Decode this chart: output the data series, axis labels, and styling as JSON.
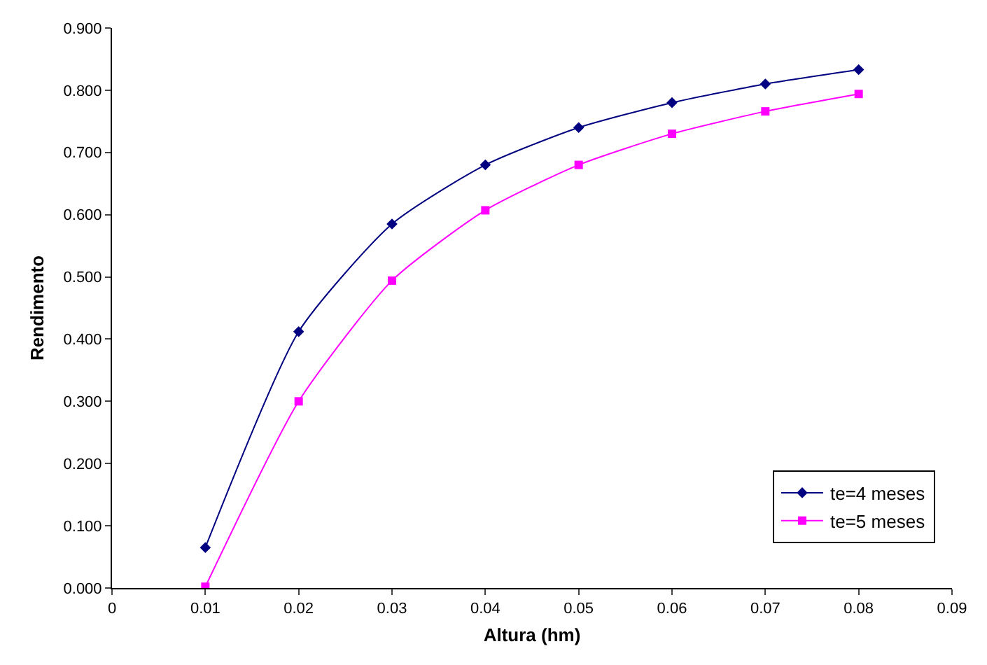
{
  "chart_data": {
    "type": "line",
    "xlabel": "Altura (hm)",
    "ylabel": "Rendimento",
    "x": [
      0.01,
      0.02,
      0.03,
      0.04,
      0.05,
      0.06,
      0.07,
      0.08
    ],
    "series": [
      {
        "name": "te=4 meses",
        "color": "#000080",
        "marker": "diamond",
        "values": [
          0.065,
          0.412,
          0.585,
          0.68,
          0.74,
          0.78,
          0.81,
          0.833
        ]
      },
      {
        "name": "te=5 meses",
        "color": "#ff00ff",
        "marker": "square",
        "values": [
          0.002,
          0.3,
          0.494,
          0.607,
          0.68,
          0.73,
          0.766,
          0.794
        ]
      }
    ],
    "xlim": [
      0,
      0.09
    ],
    "xticks": [
      0,
      0.01,
      0.02,
      0.03,
      0.04,
      0.05,
      0.06,
      0.07,
      0.08,
      0.09
    ],
    "ylim": [
      0,
      0.9
    ],
    "yticks": [
      {
        "value": 0,
        "label": "0.000"
      },
      {
        "value": 0.1,
        "label": "0.100"
      },
      {
        "value": 0.2,
        "label": "0.200"
      },
      {
        "value": 0.3,
        "label": "0.300"
      },
      {
        "value": 0.4,
        "label": "0.400"
      },
      {
        "value": 0.5,
        "label": "0.500"
      },
      {
        "value": 0.6,
        "label": "0.600"
      },
      {
        "value": 0.7,
        "label": "0.700"
      },
      {
        "value": 0.8,
        "label": "0.800"
      },
      {
        "value": 0.9,
        "label": "0.900"
      }
    ],
    "grid": false,
    "legend": "bottom right",
    "line_style": "solid"
  }
}
